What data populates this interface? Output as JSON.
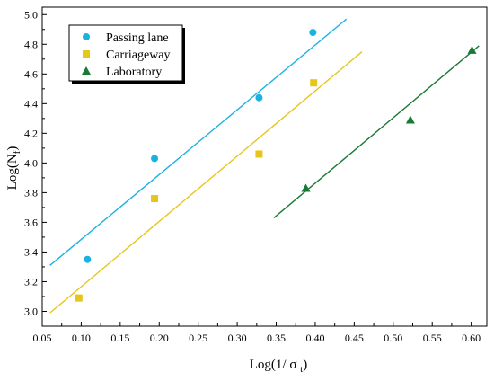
{
  "chart_data": {
    "type": "scatter",
    "xlabel": "Log(1/ σ t)",
    "xlabel_main": "Log(1/ σ ",
    "xlabel_sub": "t",
    "xlabel_close": ")",
    "ylabel": "Log(Nf)",
    "ylabel_main": "Log(N",
    "ylabel_sub": "f",
    "ylabel_close": ")",
    "xlim": [
      0.05,
      0.62
    ],
    "ylim": [
      2.9,
      5.05
    ],
    "x_ticks": [
      "0.05",
      "0.10",
      "0.15",
      "0.20",
      "0.25",
      "0.30",
      "0.35",
      "0.40",
      "0.45",
      "0.50",
      "0.55",
      "0.60"
    ],
    "y_ticks": [
      "3.0",
      "3.2",
      "3.4",
      "3.6",
      "3.8",
      "4.0",
      "4.2",
      "4.4",
      "4.6",
      "4.8",
      "5.0"
    ],
    "grid": false,
    "legend_position": "top-left",
    "series": [
      {
        "name": "Passing lane",
        "marker": "circle",
        "color": "#1ab2e0",
        "points": [
          [
            0.108,
            3.35
          ],
          [
            0.194,
            4.03
          ],
          [
            0.328,
            4.44
          ],
          [
            0.397,
            4.88
          ]
        ],
        "fit": [
          [
            0.06,
            3.31
          ],
          [
            0.44,
            4.97
          ]
        ]
      },
      {
        "name": "Carriageway",
        "marker": "square",
        "color": "#e6c619",
        "points": [
          [
            0.097,
            3.09
          ],
          [
            0.194,
            3.76
          ],
          [
            0.328,
            4.06
          ],
          [
            0.398,
            4.54
          ]
        ],
        "fit": [
          [
            0.06,
            2.99
          ],
          [
            0.46,
            4.75
          ]
        ]
      },
      {
        "name": "Laboratory",
        "marker": "triangle",
        "color": "#1a7a35",
        "points": [
          [
            0.388,
            3.83
          ],
          [
            0.522,
            4.29
          ],
          [
            0.601,
            4.76
          ]
        ],
        "fit": [
          [
            0.347,
            3.63
          ],
          [
            0.61,
            4.79
          ]
        ]
      }
    ]
  }
}
